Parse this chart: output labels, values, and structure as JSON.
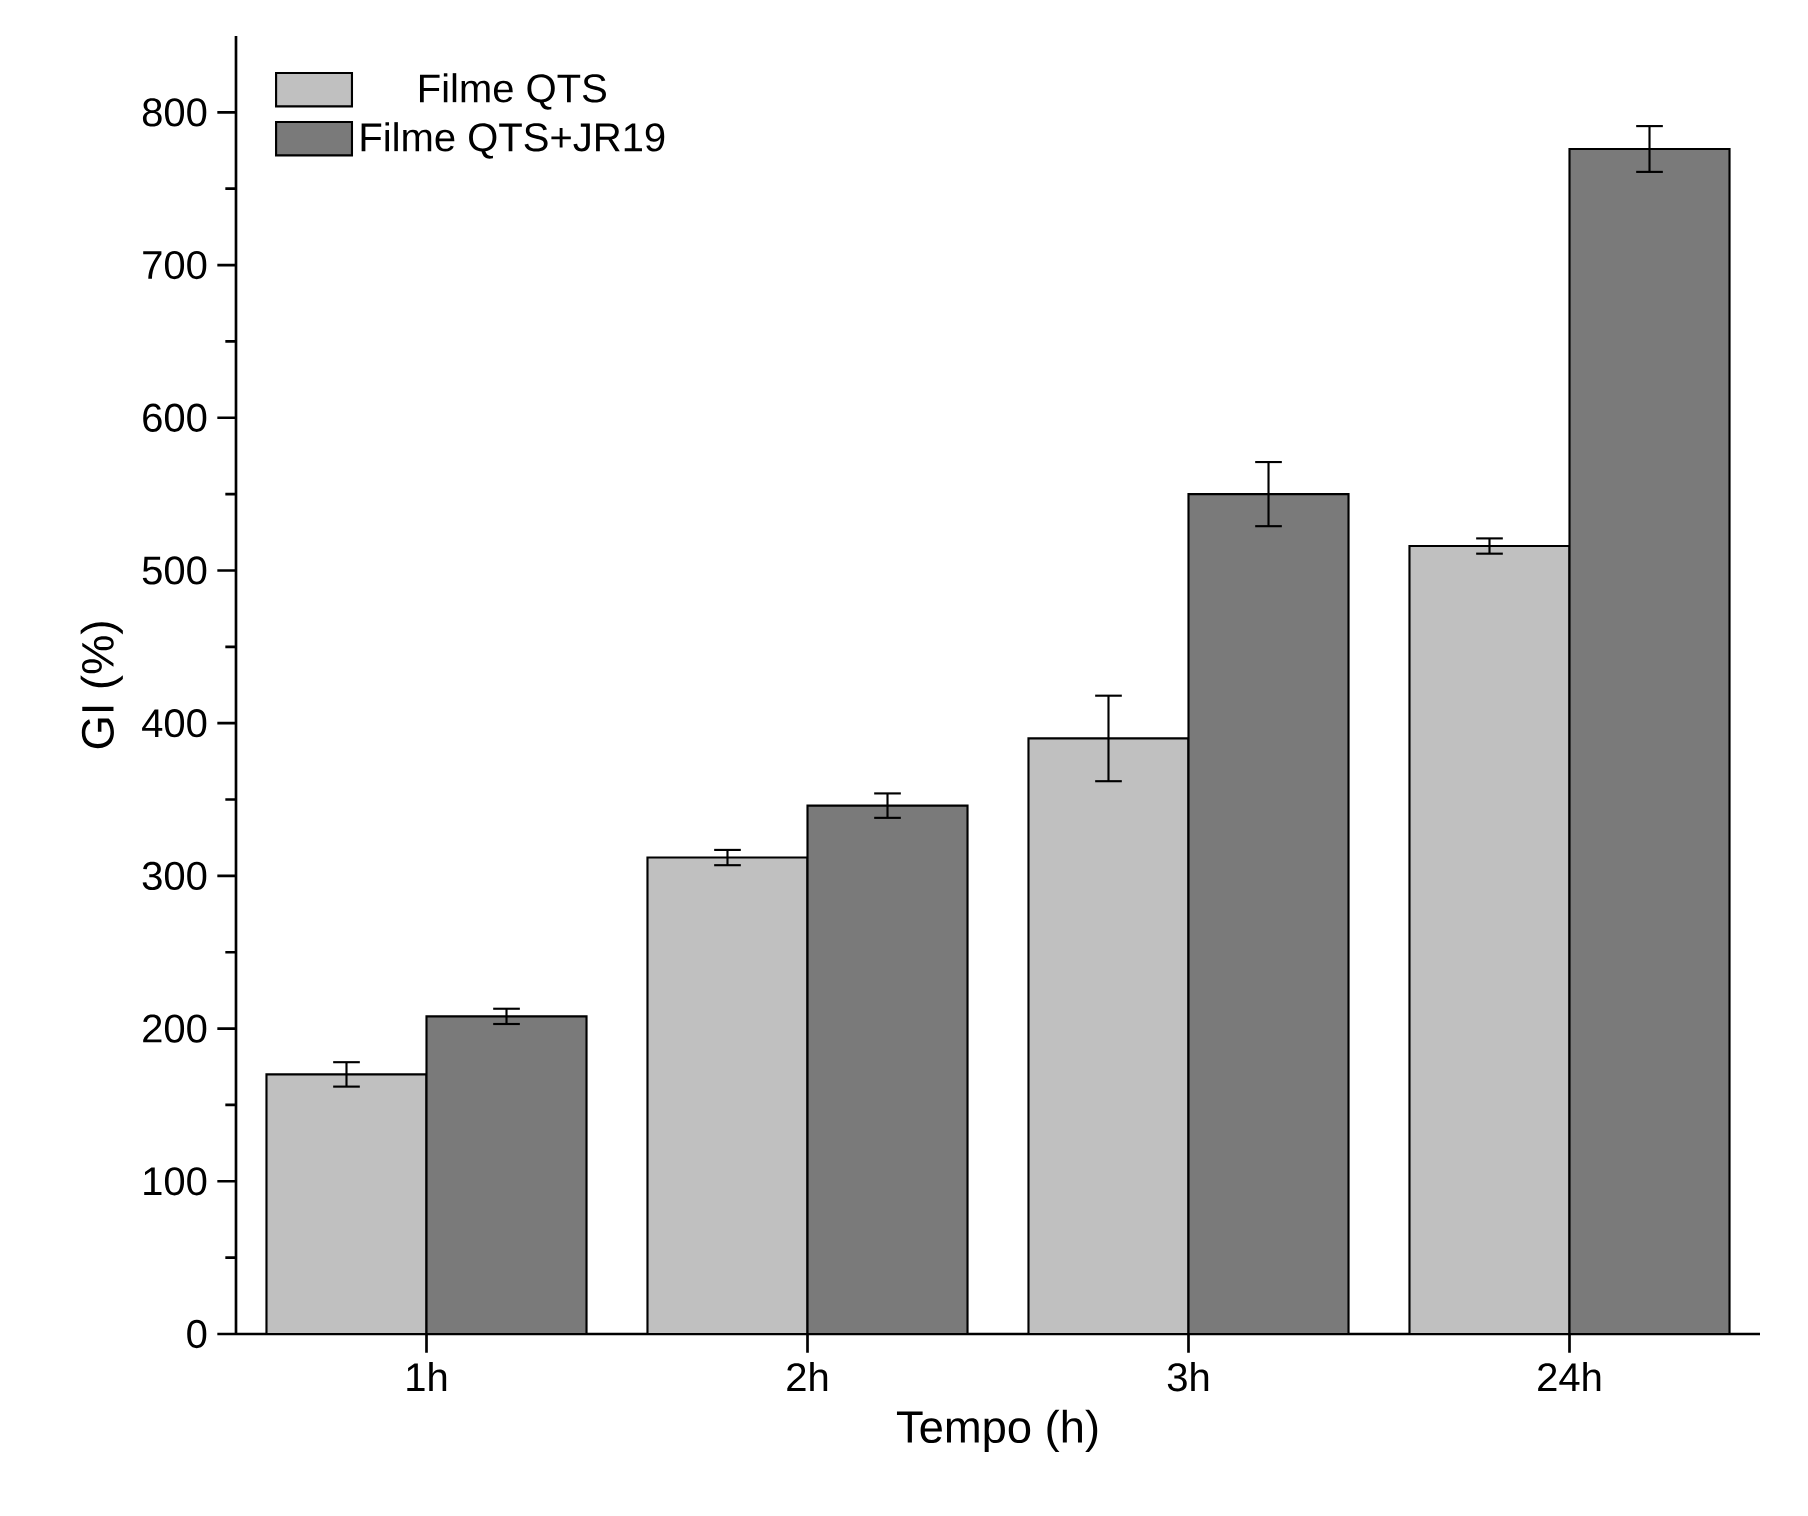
{
  "chart_data": {
    "type": "bar",
    "xlabel": "Tempo (h)",
    "ylabel": "GI (%)",
    "categories": [
      "1h",
      "2h",
      "3h",
      "24h"
    ],
    "series": [
      {
        "name": "Filme QTS",
        "color": "#c0c0c0",
        "values": [
          170,
          312,
          390,
          516
        ],
        "errors": [
          8,
          5,
          28,
          5
        ]
      },
      {
        "name": "Filme QTS+JR19",
        "color": "#7a7a7a",
        "values": [
          208,
          346,
          550,
          776
        ],
        "errors": [
          5,
          8,
          21,
          15
        ]
      }
    ],
    "ylim": [
      0,
      850
    ],
    "yticks": [
      0,
      {
        "value": 50,
        "label": null
      },
      100,
      {
        "value": 150,
        "label": null
      },
      200,
      {
        "value": 250,
        "label": null
      },
      300,
      {
        "value": 350,
        "label": null
      },
      400,
      {
        "value": 450,
        "label": null
      },
      500,
      {
        "value": 550,
        "label": null
      },
      600,
      {
        "value": 650,
        "label": null
      },
      700,
      {
        "value": 750,
        "label": null
      },
      800
    ],
    "grid": false,
    "legend": "top left"
  }
}
